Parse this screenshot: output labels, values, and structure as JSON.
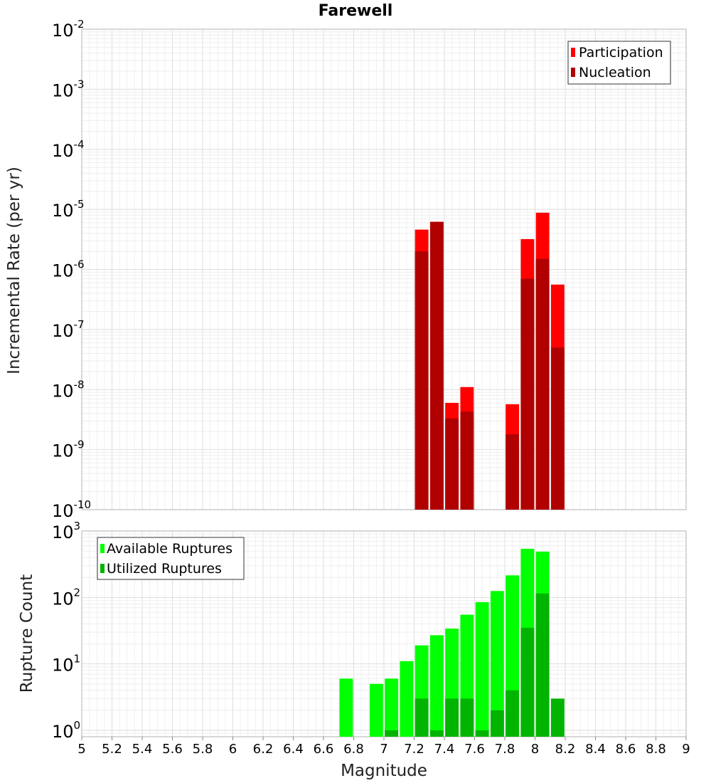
{
  "chart_data": [
    {
      "type": "bar",
      "title": "Farewell",
      "ylabel": "Incremental Rate (per yr)",
      "xlabel": "",
      "xlim": [
        5,
        9
      ],
      "ylim": [
        1e-10,
        0.01
      ],
      "yscale": "log",
      "bar_width": 0.1,
      "grid": true,
      "legend_position": "top-right",
      "series": [
        {
          "name": "Participation",
          "color": "#ff0000",
          "x": [
            7.25,
            7.35,
            7.45,
            7.55,
            7.85,
            7.95,
            8.05,
            8.15
          ],
          "values": [
            4.6e-06,
            6.2e-06,
            6e-09,
            1.1e-08,
            5.7e-09,
            3.2e-06,
            8.8e-06,
            5.6e-07
          ]
        },
        {
          "name": "Nucleation",
          "color": "#b00000",
          "x": [
            7.25,
            7.35,
            7.45,
            7.55,
            7.85,
            7.95,
            8.05,
            8.15
          ],
          "values": [
            2e-06,
            6.2e-06,
            3.3e-09,
            4.3e-09,
            1.8e-09,
            7e-07,
            1.5e-06,
            5e-08
          ]
        }
      ],
      "yticks": [
        {
          "base": "10",
          "exp": "-2",
          "value": 0.01
        },
        {
          "base": "10",
          "exp": "-3",
          "value": 0.001
        },
        {
          "base": "10",
          "exp": "-4",
          "value": 0.0001
        },
        {
          "base": "10",
          "exp": "-5",
          "value": 1e-05
        },
        {
          "base": "10",
          "exp": "-6",
          "value": 1e-06
        },
        {
          "base": "10",
          "exp": "-7",
          "value": 1e-07
        },
        {
          "base": "10",
          "exp": "-8",
          "value": 1e-08
        },
        {
          "base": "10",
          "exp": "-9",
          "value": 1e-09
        },
        {
          "base": "10",
          "exp": "-10",
          "value": 1e-10
        }
      ]
    },
    {
      "type": "bar",
      "title": "",
      "ylabel": "Rupture Count",
      "xlabel": "Magnitude",
      "xlim": [
        5,
        9
      ],
      "ylim": [
        0.8,
        1000
      ],
      "yscale": "log",
      "bar_width": 0.1,
      "grid": true,
      "legend_position": "top-left",
      "series": [
        {
          "name": "Available Ruptures",
          "color": "#00ff00",
          "x": [
            6.75,
            6.95,
            7.05,
            7.15,
            7.25,
            7.35,
            7.45,
            7.55,
            7.65,
            7.75,
            7.85,
            7.95,
            8.05
          ],
          "values": [
            6,
            5,
            6,
            11,
            19,
            27,
            34,
            55,
            85,
            125,
            215,
            540,
            490
          ]
        },
        {
          "name": "Utilized Ruptures",
          "color": "#00b400",
          "x": [
            7.05,
            7.25,
            7.35,
            7.45,
            7.55,
            7.65,
            7.75,
            7.85,
            7.95,
            8.05,
            8.15
          ],
          "values": [
            1,
            3,
            1,
            3,
            3,
            1,
            2,
            4,
            35,
            115,
            3
          ]
        }
      ],
      "yticks": [
        {
          "base": "10",
          "exp": "3",
          "value": 1000
        },
        {
          "base": "10",
          "exp": "2",
          "value": 100
        },
        {
          "base": "10",
          "exp": "1",
          "value": 10
        },
        {
          "base": "10",
          "exp": "0",
          "value": 1
        }
      ],
      "xticks": [
        "5",
        "5.2",
        "5.4",
        "5.6",
        "5.8",
        "6",
        "6.2",
        "6.4",
        "6.6",
        "6.8",
        "7",
        "7.2",
        "7.4",
        "7.6",
        "7.8",
        "8",
        "8.2",
        "8.4",
        "8.6",
        "8.8",
        "9"
      ]
    }
  ]
}
